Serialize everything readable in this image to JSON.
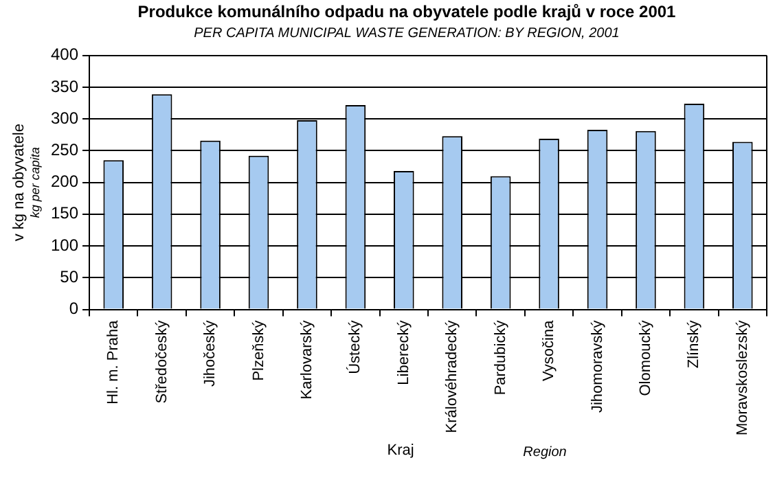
{
  "chart_data": {
    "type": "bar",
    "title": "Produkce komunálního odpadu na obyvatele podle krajů v roce 2001",
    "subtitle": "PER CAPITA MUNICIPAL WASTE GENERATION: BY REGION, 2001",
    "xlabel": "Kraj\nRegion",
    "ylabel": "v kg na obyvatele\nkg per capita",
    "categories": [
      "Hl. m. Praha",
      "Středočeský",
      "Jihočeský",
      "Plzeňský",
      "Karlovarský",
      "Ústecký",
      "Liberecký",
      "Královéhradecký",
      "Pardubický",
      "Vysočina",
      "Jihomoravský",
      "Olomoucký",
      "Zlínský",
      "Moravskoslezský"
    ],
    "values": [
      235,
      339,
      266,
      242,
      298,
      322,
      218,
      273,
      210,
      269,
      283,
      281,
      324,
      264
    ],
    "color": "#a6caf0",
    "ylim": [
      0,
      400
    ],
    "yticks": [
      0,
      50,
      100,
      150,
      200,
      250,
      300,
      350,
      400
    ],
    "grid": "y",
    "legend": false
  }
}
